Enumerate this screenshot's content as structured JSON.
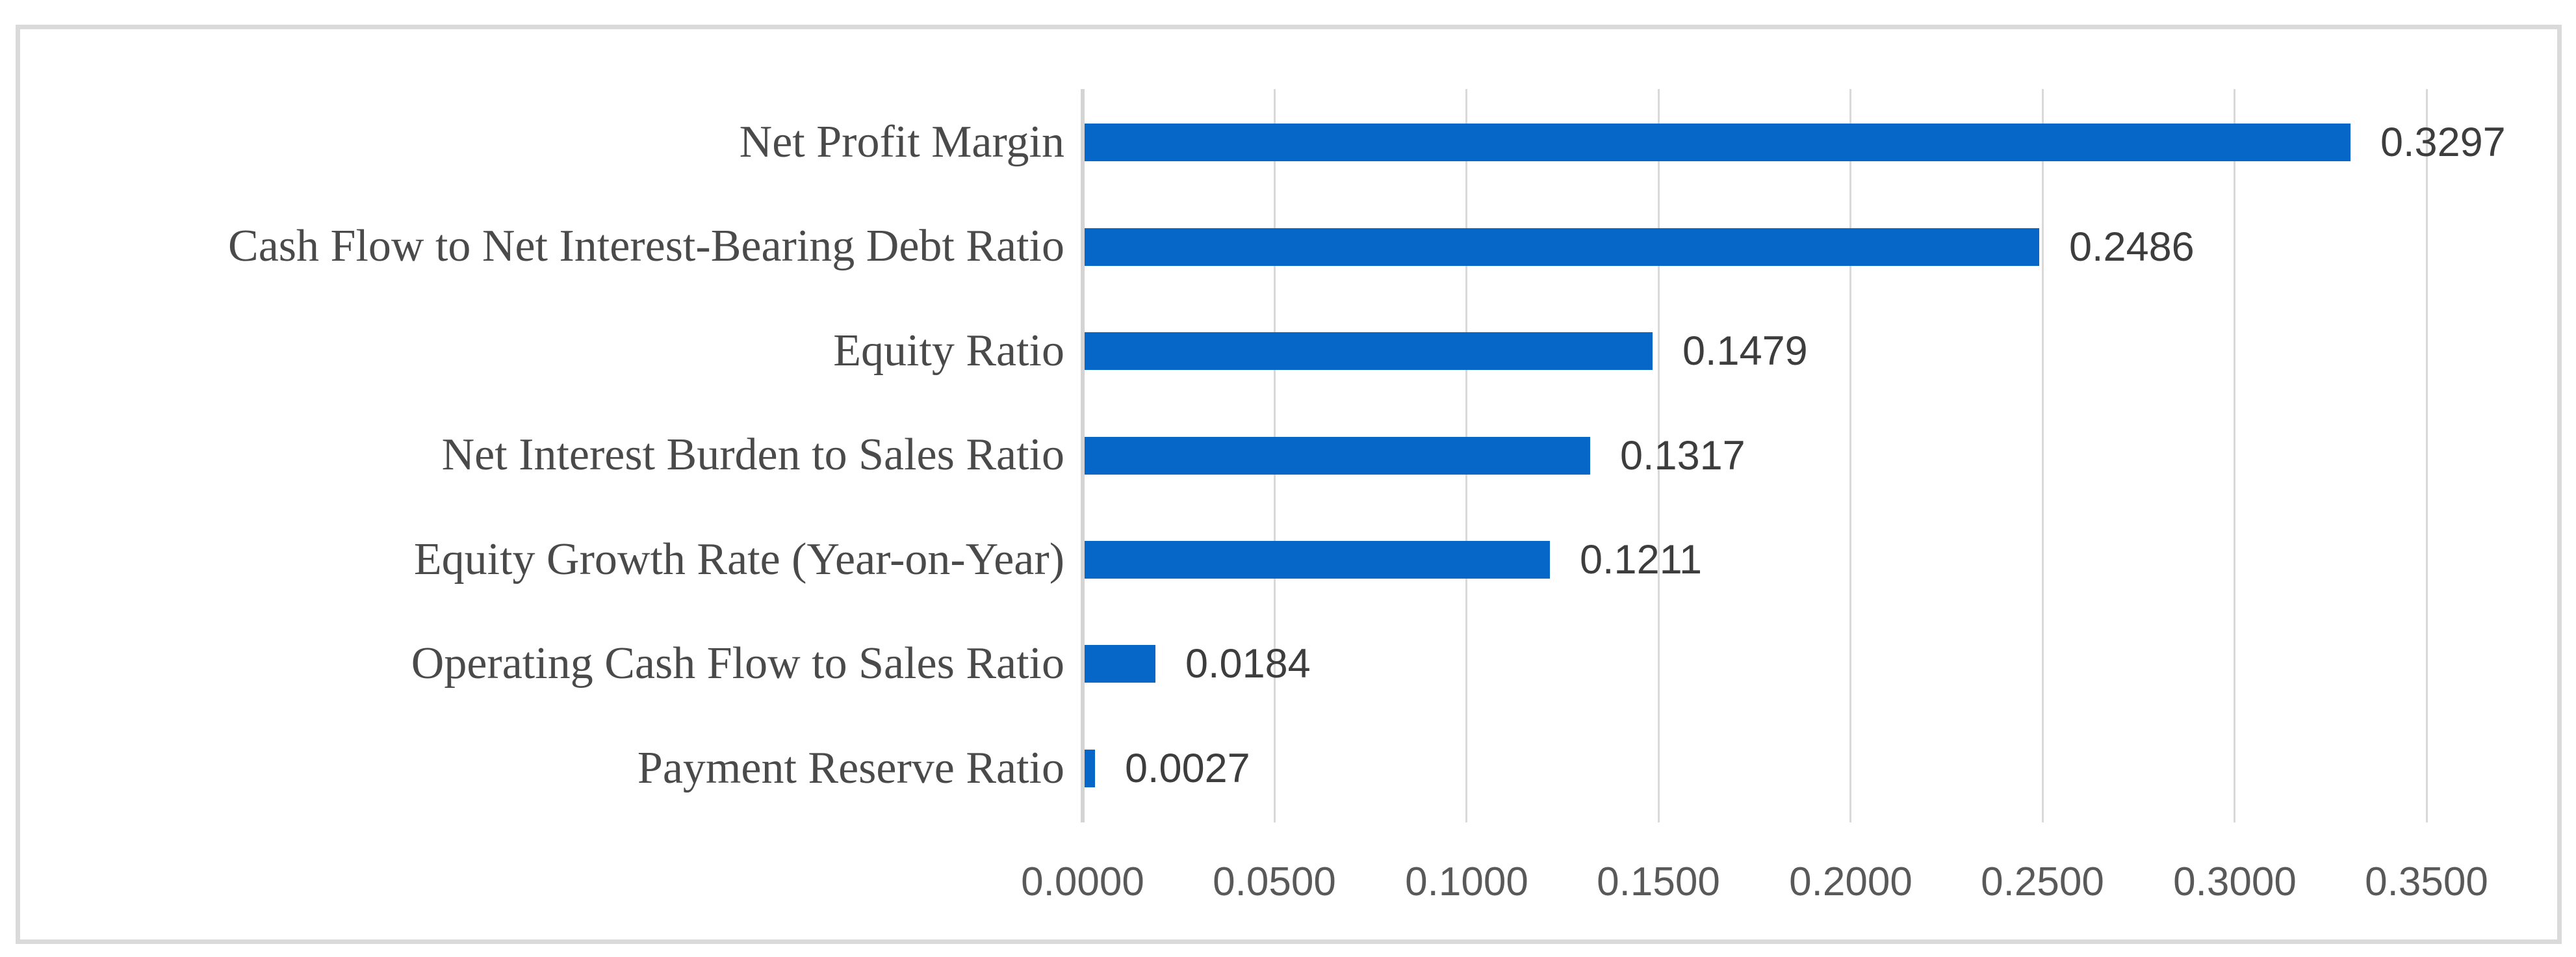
{
  "figure": {
    "background": "#FFFFFF",
    "border_color": "#DADADA"
  },
  "chart_data": {
    "type": "bar",
    "orientation": "horizontal",
    "title": "",
    "xlabel": "",
    "ylabel": "",
    "legend": "none",
    "grid": true,
    "categories": [
      "Net Profit Margin",
      "Cash Flow to Net Interest-Bearing Debt Ratio",
      "Equity Ratio",
      "Net Interest Burden to Sales Ratio",
      "Equity Growth Rate (Year-on-Year)",
      "Operating Cash Flow to Sales Ratio",
      "Payment Reserve Ratio"
    ],
    "values": [
      0.3297,
      0.2486,
      0.1479,
      0.1317,
      0.1211,
      0.0184,
      0.0027
    ],
    "value_labels": [
      "0.3297",
      "0.2486",
      "0.1479",
      "0.1317",
      "0.1211",
      "0.0184",
      "0.0027"
    ],
    "xlim": [
      0,
      0.35
    ],
    "x_ticks": [
      {
        "value": 0.0,
        "label": "0.0000"
      },
      {
        "value": 0.05,
        "label": "0.0500"
      },
      {
        "value": 0.1,
        "label": "0.1000"
      },
      {
        "value": 0.15,
        "label": "0.1500"
      },
      {
        "value": 0.2,
        "label": "0.2000"
      },
      {
        "value": 0.25,
        "label": "0.2500"
      },
      {
        "value": 0.3,
        "label": "0.3000"
      },
      {
        "value": 0.35,
        "label": "0.3500"
      }
    ],
    "colors": {
      "bar": "#0667C8",
      "gridline": "#D9D9D9",
      "axis_line": "#D4D4D4",
      "category_text": "#4A4A4A",
      "value_text": "#3D3D3D",
      "tick_text": "#595959"
    }
  }
}
